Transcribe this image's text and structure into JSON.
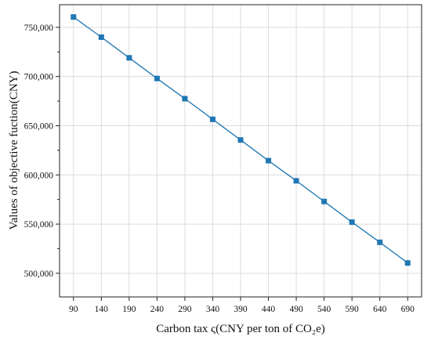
{
  "chart_data": {
    "type": "line",
    "x": [
      90,
      140,
      190,
      240,
      290,
      340,
      390,
      440,
      490,
      540,
      590,
      640,
      690
    ],
    "series": [
      {
        "values": [
          760500,
          740000,
          719000,
          698000,
          677500,
          656500,
          635500,
          614500,
          594000,
          573000,
          552000,
          531500,
          510500
        ],
        "color": "#1f77b4",
        "marker": "square"
      }
    ],
    "xlabel": "Carbon tax ς(CNY per ton of CO₂e)",
    "ylabel": "Values of objective fuction(CNY)",
    "x_tick_labels": [
      "90",
      "140",
      "190",
      "240",
      "290",
      "340",
      "390",
      "440",
      "490",
      "540",
      "590",
      "640",
      "690"
    ],
    "y_ticks": [
      500000,
      550000,
      600000,
      650000,
      700000,
      750000
    ],
    "y_tick_labels": [
      "500,000",
      "550,000",
      "600,000",
      "650,000",
      "700,000",
      "750,000"
    ],
    "xlim": [
      65,
      715
    ],
    "ylim": [
      476000,
      773000
    ],
    "grid": true,
    "legend": "none"
  }
}
